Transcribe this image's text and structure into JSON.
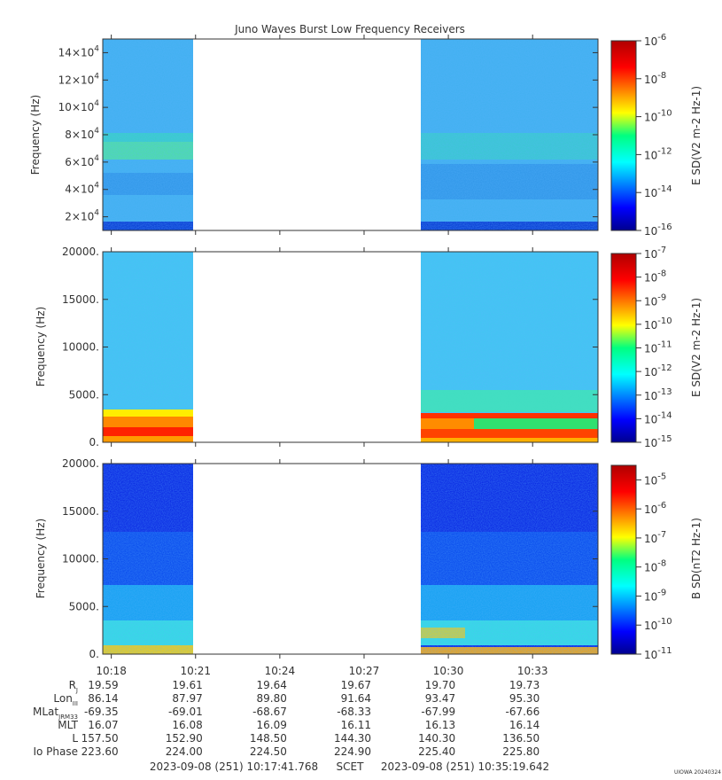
{
  "chart_data": {
    "type": "heatmap",
    "title": "Juno Waves Burst Low Frequency Receivers",
    "time_axis": {
      "tick_labels": [
        "10:18",
        "10:21",
        "10:24",
        "10:27",
        "10:30",
        "10:33"
      ],
      "start": "2023-09-08 (251) 10:17:41.768",
      "end": "2023-09-08 (251) 10:35:19.642",
      "scet_label": "SCET"
    },
    "data_coverage": [
      {
        "from": "10:17:41",
        "to": "10:20:54"
      },
      {
        "from": "10:29:12",
        "to": "10:35:19"
      }
    ],
    "panels": [
      {
        "name": "panel-1",
        "ylabel": "Frequency (Hz)",
        "ytick_labels": [
          "2×10^4",
          "4×10^4",
          "6×10^4",
          "8×10^4",
          "10×10^4",
          "12×10^4",
          "14×10^4"
        ],
        "ylim": [
          10000,
          150000
        ],
        "colorbar_label": "E SD(V2 m-2 Hz-1)",
        "colorbar_exponents": [
          "-6",
          "-8",
          "-10",
          "-12",
          "-14",
          "-16"
        ],
        "colorbar_range": [
          -16,
          -6
        ]
      },
      {
        "name": "panel-2",
        "ylabel": "Frequency (Hz)",
        "ytick_labels": [
          "0.",
          "5000.",
          "10000.",
          "15000.",
          "20000."
        ],
        "ylim": [
          0,
          20000
        ],
        "colorbar_label": "E SD(V2 m-2 Hz-1)",
        "colorbar_exponents": [
          "-7",
          "-8",
          "-9",
          "-10",
          "-11",
          "-12",
          "-13",
          "-14",
          "-15"
        ],
        "colorbar_range": [
          -15,
          -7
        ]
      },
      {
        "name": "panel-3",
        "ylabel": "Frequency (Hz)",
        "ytick_labels": [
          "0.",
          "5000.",
          "10000.",
          "15000.",
          "20000."
        ],
        "ylim": [
          0,
          20000
        ],
        "colorbar_label": "B SD(nT2 Hz-1)",
        "colorbar_exponents": [
          "-5",
          "-6",
          "-7",
          "-8",
          "-9",
          "-10",
          "-11"
        ],
        "colorbar_range": [
          -11,
          -4.5
        ]
      }
    ],
    "ephemeris": {
      "row_labels": [
        "R",
        "Lon",
        "MLat",
        "MLT",
        "L",
        "Io Phase"
      ],
      "row_subscripts": [
        "J",
        "III",
        "JRM33",
        "",
        "",
        ""
      ],
      "columns": [
        [
          "19.59",
          "86.14",
          "-69.35",
          "16.07",
          "157.50",
          "223.60"
        ],
        [
          "19.61",
          "87.97",
          "-69.01",
          "16.08",
          "152.90",
          "224.00"
        ],
        [
          "19.64",
          "89.80",
          "-68.67",
          "16.09",
          "148.50",
          "224.50"
        ],
        [
          "19.67",
          "91.64",
          "-68.33",
          "16.11",
          "144.30",
          "224.90"
        ],
        [
          "19.70",
          "93.47",
          "-67.99",
          "16.13",
          "140.30",
          "225.40"
        ],
        [
          "19.73",
          "95.30",
          "-67.66",
          "16.14",
          "136.50",
          "225.80"
        ]
      ]
    },
    "footer_stamp": "UIOWA 20240324"
  }
}
